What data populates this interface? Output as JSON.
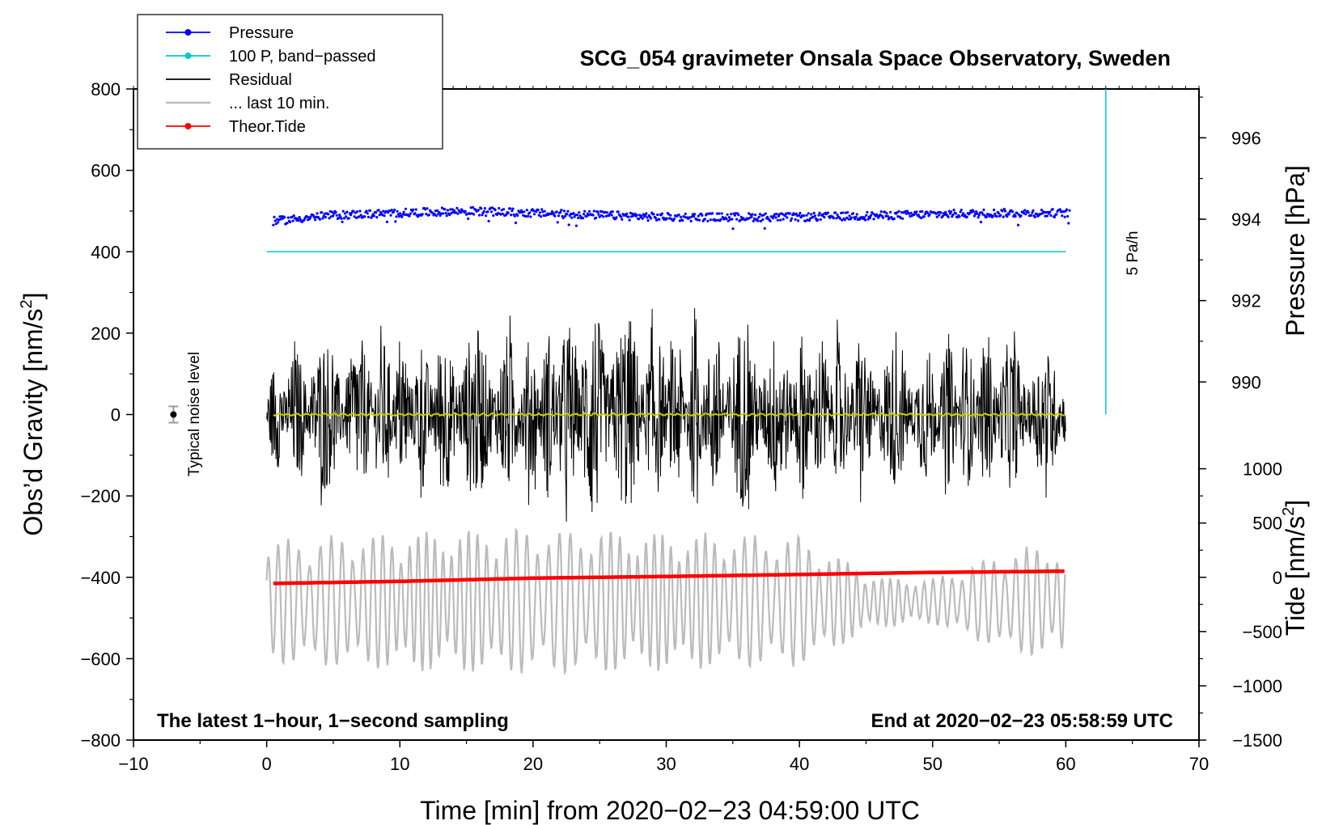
{
  "chart_data": {
    "type": "line",
    "title": "SCG_054 gravimeter Onsala Space Observatory, Sweden",
    "xlabel": "Time [min] from 2020−02−23 04:59:00 UTC",
    "ylabel": "Obs’d Gravity [nm/s²]",
    "ylabel_parts": [
      "Obs’d Gravity [nm/s",
      "2",
      "]"
    ],
    "xlim": [
      -10,
      70
    ],
    "ylim": [
      -800,
      800
    ],
    "x_ticks": [
      -10,
      0,
      10,
      20,
      30,
      40,
      50,
      60,
      70
    ],
    "x_tick_labels": [
      "−10",
      "0",
      "10",
      "20",
      "30",
      "40",
      "50",
      "60",
      "70"
    ],
    "y_ticks": [
      -800,
      -600,
      -400,
      -200,
      0,
      200,
      400,
      600,
      800
    ],
    "y_tick_labels": [
      "−800",
      "−600",
      "−400",
      "−200",
      "0",
      "200",
      "400",
      "600",
      "800"
    ],
    "pressure_axis": {
      "label": "Pressure [hPa]",
      "ticks": [
        990,
        992,
        994,
        996
      ],
      "tick_labels": [
        "990",
        "992",
        "994",
        "996"
      ],
      "gravity_at_994": 480,
      "gravity_per_hpa": 100
    },
    "tide_axis": {
      "label": "Tide [nm/s²]",
      "label_parts": [
        "Tide [nm/s",
        "2",
        "]"
      ],
      "ticks": [
        -1500,
        -1000,
        -500,
        0,
        500,
        1000
      ],
      "tick_labels": [
        "−1500",
        "−1000",
        "−500",
        "0",
        "500",
        "1000"
      ],
      "gravity_at_zero": -400,
      "gravity_per_unit": 0.2667
    },
    "series": [
      {
        "name": "Pressure",
        "color": "#0000ff",
        "style": "points",
        "x": [
          0.5,
          5,
          10,
          15,
          20,
          25,
          30,
          35,
          40,
          45,
          50,
          55,
          60
        ],
        "values": [
          475,
          490,
          495,
          500,
          495,
          490,
          485,
          485,
          485,
          488,
          492,
          495,
          495
        ],
        "noise_amplitude": 10
      },
      {
        "name": "100 P, band−passed",
        "color": "#00c8c8",
        "style": "line",
        "x": [
          0,
          60
        ],
        "values": [
          400,
          400
        ]
      },
      {
        "name": "Residual",
        "color": "#000000",
        "style": "line",
        "x": [
          0,
          5,
          10,
          15,
          20,
          25,
          30,
          35,
          40,
          45,
          50,
          55,
          60
        ],
        "envelope": [
          130,
          200,
          180,
          220,
          190,
          290,
          200,
          230,
          210,
          180,
          170,
          190,
          150
        ]
      },
      {
        "name": "... last 10 min.",
        "color": "#bbbbbb",
        "style": "line",
        "x": [
          0,
          10,
          20,
          30,
          40,
          46,
          50,
          56,
          60
        ],
        "envelope": [
          150,
          170,
          180,
          170,
          160,
          60,
          55,
          130,
          140
        ],
        "center": -460
      },
      {
        "name": "Theor.Tide",
        "color": "#ff0000",
        "style": "thick-line",
        "x": [
          0.5,
          10,
          20,
          30,
          40,
          50,
          60
        ],
        "values": [
          -415,
          -410,
          -402,
          -398,
          -393,
          -388,
          -385
        ]
      },
      {
        "name": "smoothed residual",
        "color": "#cccc00",
        "style": "line",
        "x": [
          0.5,
          60
        ],
        "values": [
          0,
          0
        ]
      }
    ],
    "annotations": {
      "noise_label": "Typical noise level",
      "noise_point": {
        "x": -7,
        "y": 0,
        "err": 20
      },
      "rate_label": "5 Pa/h",
      "rate_line": {
        "x": 63,
        "y_from": 0,
        "y_to": 800
      },
      "left_note": "The latest 1−hour, 1−second sampling",
      "right_note": "End at 2020−02−23 05:58:59 UTC"
    },
    "legend": {
      "position": "top-left",
      "entries": [
        {
          "label": "Pressure",
          "color": "#0000ff",
          "marker": "dot"
        },
        {
          "label": "100 P, band−passed",
          "color": "#00c8c8",
          "marker": "dot"
        },
        {
          "label": "Residual",
          "color": "#000000",
          "marker": "none"
        },
        {
          "label": "... last 10 min.",
          "color": "#bbbbbb",
          "marker": "none"
        },
        {
          "label": "Theor.Tide",
          "color": "#ff0000",
          "marker": "dot"
        }
      ]
    }
  }
}
